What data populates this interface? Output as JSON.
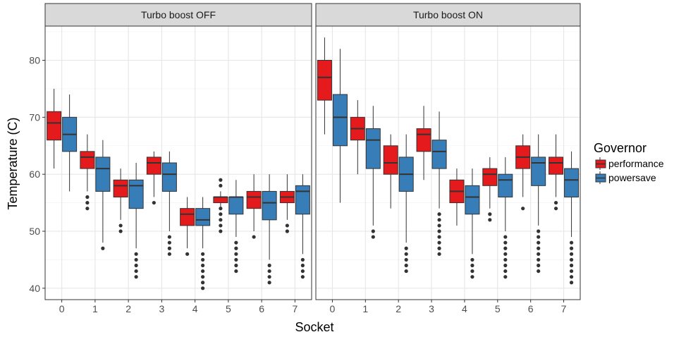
{
  "chart_data": {
    "type": "boxplot",
    "xlabel": "Socket",
    "ylabel": "Temperature (C)",
    "ylim": [
      38,
      86
    ],
    "yticks": [
      40,
      50,
      60,
      70,
      80
    ],
    "categories": [
      "0",
      "1",
      "2",
      "3",
      "4",
      "5",
      "6",
      "7"
    ],
    "grid": true,
    "legend": {
      "title": "Governor",
      "position": "right",
      "entries": [
        {
          "name": "performance",
          "color": "#e41a1c"
        },
        {
          "name": "powersave",
          "color": "#377eb8"
        }
      ]
    },
    "panels": [
      {
        "title": "Turbo boost OFF",
        "series": [
          {
            "name": "performance",
            "boxes": [
              {
                "socket": "0",
                "lower": 61,
                "q1": 66,
                "median": 69,
                "q3": 71,
                "upper": 75,
                "outliers": []
              },
              {
                "socket": "1",
                "lower": 57,
                "q1": 61,
                "median": 63,
                "q3": 64,
                "upper": 67,
                "outliers": [
                  54,
                  55,
                  56
                ]
              },
              {
                "socket": "2",
                "lower": 52,
                "q1": 56,
                "median": 58,
                "q3": 59,
                "upper": 61,
                "outliers": [
                  50,
                  51
                ]
              },
              {
                "socket": "3",
                "lower": 56,
                "q1": 60,
                "median": 62,
                "q3": 63,
                "upper": 64,
                "outliers": [
                  55
                ]
              },
              {
                "socket": "4",
                "lower": 47,
                "q1": 51,
                "median": 53,
                "q3": 54,
                "upper": 56,
                "outliers": [
                  46
                ]
              },
              {
                "socket": "5",
                "lower": 54,
                "q1": 55,
                "median": 56,
                "q3": 56,
                "upper": 57,
                "outliers": [
                  50,
                  51,
                  52,
                  53,
                  54,
                  58,
                  59
                ]
              },
              {
                "socket": "6",
                "lower": 50,
                "q1": 54,
                "median": 56,
                "q3": 57,
                "upper": 60,
                "outliers": [
                  49
                ]
              },
              {
                "socket": "7",
                "lower": 52,
                "q1": 55,
                "median": 56,
                "q3": 57,
                "upper": 60,
                "outliers": [
                  50,
                  51
                ]
              }
            ]
          },
          {
            "name": "powersave",
            "boxes": [
              {
                "socket": "0",
                "lower": 57,
                "q1": 64,
                "median": 67,
                "q3": 70,
                "upper": 74,
                "outliers": []
              },
              {
                "socket": "1",
                "lower": 48,
                "q1": 57,
                "median": 61,
                "q3": 63,
                "upper": 66,
                "outliers": [
                  47
                ]
              },
              {
                "socket": "2",
                "lower": 47,
                "q1": 54,
                "median": 58,
                "q3": 59,
                "upper": 62,
                "outliers": [
                  42,
                  43,
                  44,
                  45,
                  46
                ]
              },
              {
                "socket": "3",
                "lower": 50,
                "q1": 57,
                "median": 60,
                "q3": 62,
                "upper": 64,
                "outliers": [
                  46,
                  47,
                  48,
                  49
                ]
              },
              {
                "socket": "4",
                "lower": 47,
                "q1": 51,
                "median": 52,
                "q3": 54,
                "upper": 56,
                "outliers": [
                  40,
                  41,
                  42,
                  43,
                  44,
                  45,
                  46
                ]
              },
              {
                "socket": "5",
                "lower": 49,
                "q1": 53,
                "median": 56,
                "q3": 56,
                "upper": 59,
                "outliers": [
                  43,
                  44,
                  45,
                  46,
                  47,
                  48
                ]
              },
              {
                "socket": "6",
                "lower": 45,
                "q1": 52,
                "median": 55,
                "q3": 57,
                "upper": 60,
                "outliers": [
                  41,
                  42,
                  43,
                  44
                ]
              },
              {
                "socket": "7",
                "lower": 46,
                "q1": 53,
                "median": 57,
                "q3": 58,
                "upper": 60,
                "outliers": [
                  42,
                  43,
                  44,
                  45
                ]
              }
            ]
          }
        ]
      },
      {
        "title": "Turbo boost ON",
        "series": [
          {
            "name": "performance",
            "boxes": [
              {
                "socket": "0",
                "lower": 67,
                "q1": 73,
                "median": 77,
                "q3": 80,
                "upper": 84,
                "outliers": []
              },
              {
                "socket": "1",
                "lower": 60,
                "q1": 66,
                "median": 68,
                "q3": 70,
                "upper": 73,
                "outliers": []
              },
              {
                "socket": "2",
                "lower": 54,
                "q1": 60,
                "median": 62,
                "q3": 65,
                "upper": 67,
                "outliers": []
              },
              {
                "socket": "3",
                "lower": 59,
                "q1": 64,
                "median": 67,
                "q3": 68,
                "upper": 72,
                "outliers": []
              },
              {
                "socket": "4",
                "lower": 51,
                "q1": 55,
                "median": 57,
                "q3": 59,
                "upper": 61,
                "outliers": []
              },
              {
                "socket": "5",
                "lower": 54,
                "q1": 58,
                "median": 60,
                "q3": 61,
                "upper": 63,
                "outliers": [
                  52,
                  53
                ]
              },
              {
                "socket": "6",
                "lower": 56,
                "q1": 61,
                "median": 63,
                "q3": 65,
                "upper": 67,
                "outliers": [
                  54
                ]
              },
              {
                "socket": "7",
                "lower": 56,
                "q1": 60,
                "median": 62,
                "q3": 63,
                "upper": 67,
                "outliers": [
                  54,
                  55
                ]
              }
            ]
          },
          {
            "name": "powersave",
            "boxes": [
              {
                "socket": "0",
                "lower": 55,
                "q1": 65,
                "median": 70,
                "q3": 74,
                "upper": 82,
                "outliers": []
              },
              {
                "socket": "1",
                "lower": 51,
                "q1": 61,
                "median": 66,
                "q3": 68,
                "upper": 72,
                "outliers": [
                  49,
                  50
                ]
              },
              {
                "socket": "2",
                "lower": 48,
                "q1": 57,
                "median": 60,
                "q3": 63,
                "upper": 67,
                "outliers": [
                  43,
                  44,
                  45,
                  46,
                  47
                ]
              },
              {
                "socket": "3",
                "lower": 54,
                "q1": 61,
                "median": 64,
                "q3": 66,
                "upper": 71,
                "outliers": [
                  46,
                  47,
                  48,
                  49,
                  50,
                  51,
                  52,
                  53
                ]
              },
              {
                "socket": "4",
                "lower": 46,
                "q1": 53,
                "median": 56,
                "q3": 58,
                "upper": 61,
                "outliers": [
                  42,
                  43,
                  44,
                  45
                ]
              },
              {
                "socket": "5",
                "lower": 50,
                "q1": 56,
                "median": 59,
                "q3": 60,
                "upper": 63,
                "outliers": [
                  42,
                  43,
                  44,
                  45,
                  46,
                  47,
                  48,
                  49
                ]
              },
              {
                "socket": "6",
                "lower": 51,
                "q1": 58,
                "median": 62,
                "q3": 63,
                "upper": 67,
                "outliers": [
                  43,
                  44,
                  45,
                  46,
                  47,
                  48,
                  49,
                  50
                ]
              },
              {
                "socket": "7",
                "lower": 49,
                "q1": 56,
                "median": 59,
                "q3": 61,
                "upper": 64,
                "outliers": [
                  41,
                  42,
                  43,
                  44,
                  45,
                  46,
                  47,
                  48
                ]
              }
            ]
          }
        ]
      }
    ]
  }
}
